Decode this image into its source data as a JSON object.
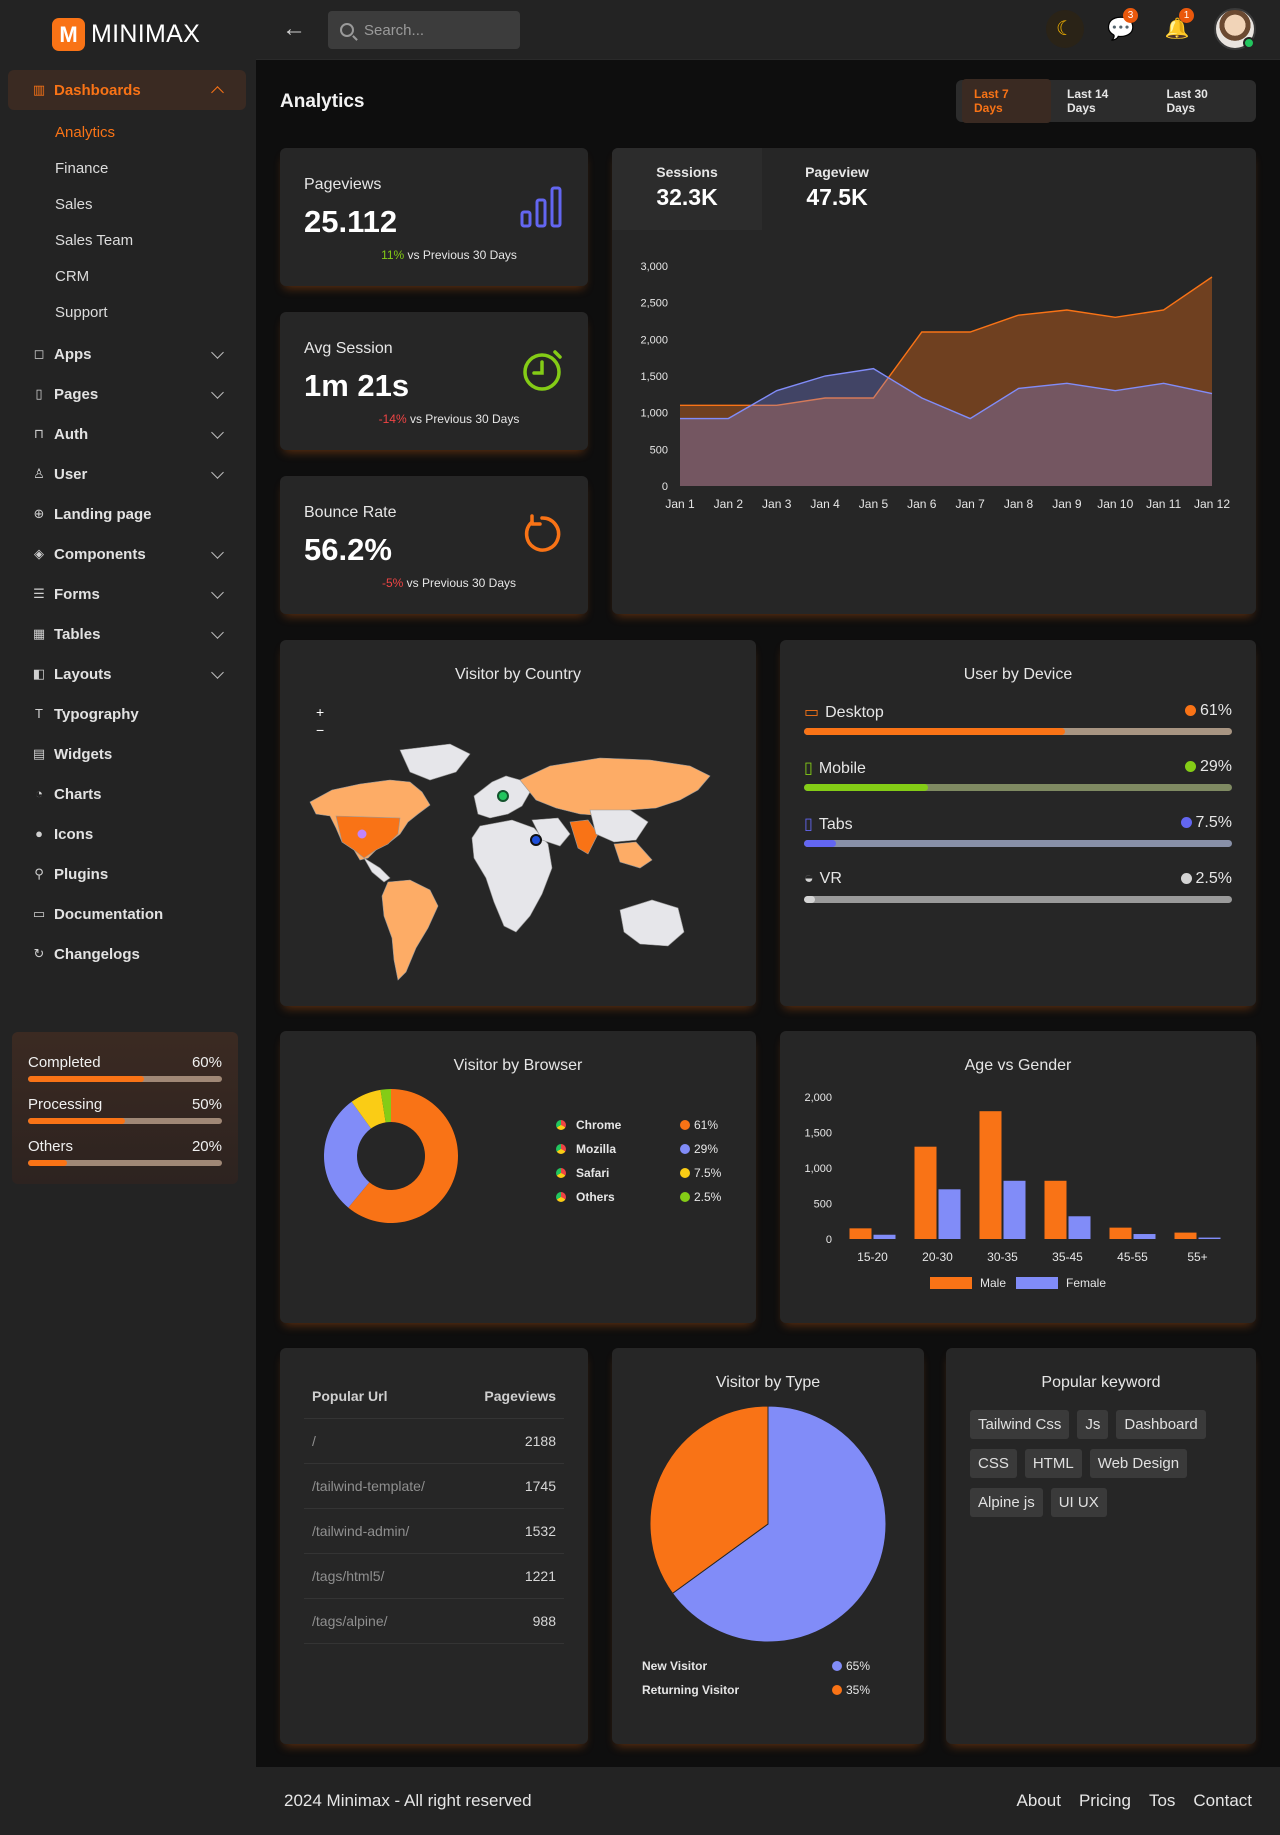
{
  "brand": {
    "mark": "M",
    "name": "MINIMAX"
  },
  "search": {
    "placeholder": "Search..."
  },
  "topbar": {
    "messages_count": "3",
    "notifications_count": "1"
  },
  "sidebar": {
    "dashboards": "Dashboards",
    "sub": [
      "Analytics",
      "Finance",
      "Sales",
      "Sales Team",
      "CRM",
      "Support"
    ],
    "items": [
      "Apps",
      "Pages",
      "Auth",
      "User",
      "Landing page",
      "Components",
      "Forms",
      "Tables",
      "Layouts",
      "Typography",
      "Widgets",
      "Charts",
      "Icons",
      "Plugins",
      "Documentation",
      "Changelogs"
    ]
  },
  "progress": [
    {
      "label": "Completed",
      "value": "60%",
      "fraction": 0.6
    },
    {
      "label": "Processing",
      "value": "50%",
      "fraction": 0.5
    },
    {
      "label": "Others",
      "value": "20%",
      "fraction": 0.2
    }
  ],
  "page": {
    "title": "Analytics",
    "ranges": [
      "Last 7 Days",
      "Last 14 Days",
      "Last 30 Days"
    ],
    "active_range": "Last 7 Days"
  },
  "stats": [
    {
      "label": "Pageviews",
      "value": "25.112",
      "change": "11%",
      "compare": " vs Previous 30 Days",
      "trend": "up",
      "icon": "bar-chart-icon"
    },
    {
      "label": "Avg Session",
      "value": "1m 21s",
      "change": "-14%",
      "compare": " vs Previous 30 Days",
      "trend": "down",
      "icon": "stopwatch-icon"
    },
    {
      "label": "Bounce Rate",
      "value": "56.2%",
      "change": "-5%",
      "compare": " vs Previous 30 Days",
      "trend": "down",
      "icon": "refresh-icon"
    }
  ],
  "sessions": {
    "sessions_label": "Sessions",
    "sessions_value": "32.3K",
    "pageview_label": "Pageview",
    "pageview_value": "47.5K"
  },
  "chart_data": [
    {
      "type": "area",
      "x": [
        "Jan 1",
        "Jan 2",
        "Jan 3",
        "Jan 4",
        "Jan 5",
        "Jan 6",
        "Jan 7",
        "Jan 8",
        "Jan 9",
        "Jan 10",
        "Jan 11",
        "Jan 12"
      ],
      "ylim": [
        0,
        3000
      ],
      "yticks": [
        0,
        500,
        1000,
        1500,
        2000,
        2500,
        3000
      ],
      "series": [
        {
          "values": [
            1100,
            1100,
            1100,
            1200,
            1200,
            2100,
            2100,
            2330,
            2400,
            2300,
            2400,
            2850
          ],
          "color": "#f97316"
        },
        {
          "values": [
            920,
            920,
            1300,
            1500,
            1600,
            1200,
            920,
            1330,
            1400,
            1300,
            1400,
            1260
          ],
          "color": "#818cf8"
        }
      ]
    },
    {
      "type": "pie",
      "title": "Visitor by Browser",
      "series": [
        {
          "name": "Chrome",
          "value": 61,
          "label": "61%",
          "color": "#f97316"
        },
        {
          "name": "Mozilla",
          "value": 29,
          "label": "29%",
          "color": "#818cf8"
        },
        {
          "name": "Safari",
          "value": 7.5,
          "label": "7.5%",
          "color": "#facc15"
        },
        {
          "name": "Others",
          "value": 2.5,
          "label": "2.5%",
          "color": "#84cc16"
        }
      ]
    },
    {
      "type": "bar",
      "title": "Age vs Gender",
      "categories": [
        "15-20",
        "20-30",
        "30-35",
        "35-45",
        "45-55",
        "55+"
      ],
      "ylim": [
        0,
        2000
      ],
      "yticks": [
        0,
        500,
        1000,
        1500,
        2000
      ],
      "series": [
        {
          "name": "Male",
          "values": [
            150,
            1300,
            1800,
            820,
            160,
            90
          ],
          "color": "#f97316"
        },
        {
          "name": "Female",
          "values": [
            60,
            700,
            820,
            320,
            70,
            20
          ],
          "color": "#818cf8"
        }
      ]
    },
    {
      "type": "pie",
      "title": "Visitor by Type",
      "series": [
        {
          "name": "New Visitor",
          "value": 65,
          "label": "65%",
          "color": "#818cf8"
        },
        {
          "name": "Returning Visitor",
          "value": 35,
          "label": "35%",
          "color": "#f97316"
        }
      ]
    }
  ],
  "country": {
    "title": "Visitor by Country",
    "zoom_in": "+",
    "zoom_out": "−"
  },
  "device": {
    "title": "User by Device",
    "items": [
      {
        "name": "Desktop",
        "value": "61%",
        "fraction": 0.61,
        "color": "#f97316",
        "track": "#a89582",
        "icon": "laptop-icon"
      },
      {
        "name": "Mobile",
        "value": "29%",
        "fraction": 0.29,
        "color": "#84cc16",
        "track": "#7f8a62",
        "icon": "mobile-icon"
      },
      {
        "name": "Tabs",
        "value": "7.5%",
        "fraction": 0.075,
        "color": "#6366f1",
        "track": "#8890a8",
        "icon": "tablet-icon"
      },
      {
        "name": "VR",
        "value": "2.5%",
        "fraction": 0.025,
        "color": "#d4d4d4",
        "track": "#9a9a9a",
        "icon": "vr-headset-icon"
      }
    ]
  },
  "urls": {
    "head_url": "Popular Url",
    "head_views": "Pageviews",
    "rows": [
      {
        "url": "/",
        "views": "2188"
      },
      {
        "url": "/tailwind-template/",
        "views": "1745"
      },
      {
        "url": "/tailwind-admin/",
        "views": "1532"
      },
      {
        "url": "/tags/html5/",
        "views": "1221"
      },
      {
        "url": "/tags/alpine/",
        "views": "988"
      }
    ]
  },
  "keywords": {
    "title": "Popular keyword",
    "items": [
      "Tailwind Css",
      "Js",
      "Dashboard",
      "CSS",
      "HTML",
      "Web Design",
      "Alpine js",
      "UI UX"
    ]
  },
  "footer": {
    "copyright": "2024 Minimax - All right reserved",
    "links": [
      "About",
      "Pricing",
      "Tos",
      "Contact"
    ]
  }
}
